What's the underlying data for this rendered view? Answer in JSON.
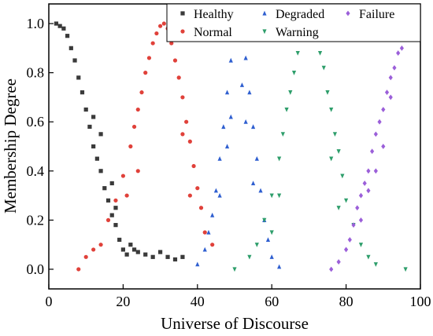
{
  "chart_data": {
    "type": "scatter",
    "xlabel": "Universe of Discourse",
    "ylabel": "Membership Degree",
    "xlim": [
      0,
      100
    ],
    "ylim": [
      -0.08,
      1.08
    ],
    "x_ticks": [
      0,
      20,
      40,
      60,
      80,
      100
    ],
    "y_ticks": [
      0.0,
      0.2,
      0.4,
      0.6,
      0.8,
      1.0
    ],
    "x_tick_labels": [
      "0",
      "20",
      "40",
      "60",
      "80",
      "100"
    ],
    "y_tick_labels": [
      "0.0",
      "0.2",
      "0.4",
      "0.6",
      "0.8",
      "1.0"
    ],
    "grid": false,
    "legend_position": "top-right",
    "series": [
      {
        "name": "Healthy",
        "marker": "square",
        "color": "#3a3a3a",
        "points": [
          [
            2,
            1.0
          ],
          [
            3,
            0.99
          ],
          [
            4,
            0.98
          ],
          [
            5,
            0.95
          ],
          [
            6,
            0.9
          ],
          [
            7,
            0.85
          ],
          [
            8,
            0.78
          ],
          [
            9,
            0.72
          ],
          [
            10,
            0.65
          ],
          [
            11,
            0.58
          ],
          [
            12,
            0.5
          ],
          [
            13,
            0.45
          ],
          [
            14,
            0.4
          ],
          [
            15,
            0.33
          ],
          [
            16,
            0.28
          ],
          [
            17,
            0.22
          ],
          [
            18,
            0.18
          ],
          [
            19,
            0.12
          ],
          [
            20,
            0.08
          ],
          [
            21,
            0.06
          ],
          [
            22,
            0.1
          ],
          [
            23,
            0.08
          ],
          [
            24,
            0.07
          ],
          [
            26,
            0.06
          ],
          [
            28,
            0.05
          ],
          [
            30,
            0.07
          ],
          [
            32,
            0.05
          ],
          [
            34,
            0.04
          ],
          [
            36,
            0.05
          ],
          [
            17,
            0.35
          ],
          [
            14,
            0.55
          ],
          [
            12,
            0.62
          ],
          [
            18,
            0.25
          ]
        ]
      },
      {
        "name": "Normal",
        "marker": "circle",
        "color": "#e0413a",
        "points": [
          [
            8,
            0.0
          ],
          [
            10,
            0.05
          ],
          [
            12,
            0.08
          ],
          [
            14,
            0.1
          ],
          [
            16,
            0.2
          ],
          [
            18,
            0.28
          ],
          [
            20,
            0.38
          ],
          [
            22,
            0.5
          ],
          [
            23,
            0.58
          ],
          [
            24,
            0.65
          ],
          [
            25,
            0.72
          ],
          [
            26,
            0.8
          ],
          [
            27,
            0.86
          ],
          [
            28,
            0.92
          ],
          [
            29,
            0.96
          ],
          [
            30,
            0.99
          ],
          [
            31,
            1.0
          ],
          [
            32,
            0.98
          ],
          [
            33,
            0.92
          ],
          [
            34,
            0.85
          ],
          [
            35,
            0.78
          ],
          [
            36,
            0.7
          ],
          [
            37,
            0.6
          ],
          [
            38,
            0.52
          ],
          [
            39,
            0.42
          ],
          [
            40,
            0.33
          ],
          [
            41,
            0.25
          ],
          [
            42,
            0.15
          ],
          [
            44,
            0.1
          ],
          [
            21,
            0.3
          ],
          [
            24,
            0.4
          ],
          [
            36,
            0.55
          ],
          [
            38,
            0.3
          ]
        ]
      },
      {
        "name": "Degraded",
        "marker": "triangle",
        "color": "#2f5fd0",
        "points": [
          [
            40,
            0.02
          ],
          [
            42,
            0.08
          ],
          [
            43,
            0.15
          ],
          [
            44,
            0.22
          ],
          [
            45,
            0.32
          ],
          [
            46,
            0.45
          ],
          [
            47,
            0.58
          ],
          [
            48,
            0.72
          ],
          [
            49,
            0.85
          ],
          [
            50,
            0.95
          ],
          [
            51,
            1.0
          ],
          [
            52,
            0.96
          ],
          [
            53,
            0.86
          ],
          [
            54,
            0.72
          ],
          [
            55,
            0.58
          ],
          [
            56,
            0.45
          ],
          [
            57,
            0.32
          ],
          [
            58,
            0.2
          ],
          [
            59,
            0.12
          ],
          [
            60,
            0.05
          ],
          [
            62,
            0.01
          ],
          [
            46,
            0.3
          ],
          [
            48,
            0.5
          ],
          [
            53,
            0.6
          ],
          [
            55,
            0.35
          ],
          [
            52,
            0.75
          ],
          [
            49,
            0.62
          ]
        ]
      },
      {
        "name": "Warning",
        "marker": "triangle-down",
        "color": "#2e9e6b",
        "points": [
          [
            50,
            0.0
          ],
          [
            54,
            0.05
          ],
          [
            56,
            0.1
          ],
          [
            58,
            0.2
          ],
          [
            60,
            0.3
          ],
          [
            62,
            0.45
          ],
          [
            63,
            0.55
          ],
          [
            64,
            0.65
          ],
          [
            65,
            0.72
          ],
          [
            66,
            0.8
          ],
          [
            67,
            0.88
          ],
          [
            68,
            0.94
          ],
          [
            69,
            0.98
          ],
          [
            70,
            1.0
          ],
          [
            71,
            0.99
          ],
          [
            72,
            0.95
          ],
          [
            73,
            0.88
          ],
          [
            74,
            0.82
          ],
          [
            75,
            0.72
          ],
          [
            76,
            0.65
          ],
          [
            77,
            0.55
          ],
          [
            78,
            0.48
          ],
          [
            79,
            0.38
          ],
          [
            80,
            0.28
          ],
          [
            82,
            0.18
          ],
          [
            84,
            0.1
          ],
          [
            86,
            0.05
          ],
          [
            88,
            0.02
          ],
          [
            96,
            0.0
          ],
          [
            60,
            0.15
          ],
          [
            62,
            0.3
          ],
          [
            76,
            0.45
          ],
          [
            78,
            0.25
          ]
        ]
      },
      {
        "name": "Failure",
        "marker": "diamond",
        "color": "#9b5fd9",
        "points": [
          [
            76,
            0.0
          ],
          [
            78,
            0.03
          ],
          [
            80,
            0.08
          ],
          [
            81,
            0.12
          ],
          [
            82,
            0.18
          ],
          [
            83,
            0.25
          ],
          [
            84,
            0.3
          ],
          [
            85,
            0.35
          ],
          [
            86,
            0.4
          ],
          [
            87,
            0.48
          ],
          [
            88,
            0.55
          ],
          [
            89,
            0.6
          ],
          [
            90,
            0.65
          ],
          [
            91,
            0.72
          ],
          [
            92,
            0.78
          ],
          [
            93,
            0.82
          ],
          [
            94,
            0.88
          ],
          [
            95,
            0.9
          ],
          [
            96,
            0.94
          ],
          [
            97,
            0.97
          ],
          [
            98,
            0.99
          ],
          [
            99,
            1.0
          ],
          [
            84,
            0.2
          ],
          [
            86,
            0.32
          ],
          [
            90,
            0.5
          ],
          [
            92,
            0.7
          ],
          [
            88,
            0.4
          ]
        ]
      }
    ]
  }
}
